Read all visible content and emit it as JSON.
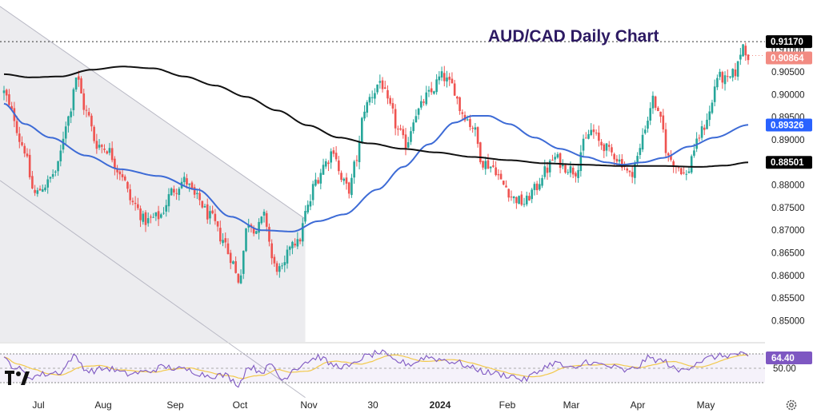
{
  "chart_data": {
    "type": "candlestick",
    "title": "AUD/CAD Daily Chart",
    "price_axis": {
      "range": [
        0.8453,
        0.9195
      ],
      "ticks": [
        "0.85000",
        "0.85500",
        "0.86000",
        "0.86500",
        "0.87000",
        "0.87500",
        "0.88000",
        "0.88500",
        "0.89000",
        "0.89500",
        "0.90000",
        "0.90500",
        "0.91000"
      ]
    },
    "time_axis": {
      "labels": [
        "Jul",
        "Aug",
        "Sep",
        "Oct",
        "Nov",
        "30",
        "2024",
        "Feb",
        "Mar",
        "Apr",
        "May"
      ],
      "bold_labels": [
        "2024"
      ]
    },
    "price_tags": [
      {
        "id": "high",
        "label": "0.91170",
        "value": 0.9117,
        "color": "#000000",
        "text_color": "#ffffff"
      },
      {
        "id": "last",
        "label": "0.90864",
        "value": 0.90864,
        "color": "#f28b82",
        "text_color": "#ffffff"
      },
      {
        "id": "ma50",
        "label": "0.89326",
        "value": 0.89326,
        "color": "#2962ff",
        "text_color": "#ffffff"
      },
      {
        "id": "ma200",
        "label": "0.88501",
        "value": 0.88501,
        "color": "#000000",
        "text_color": "#ffffff"
      }
    ],
    "high_line": 0.9117,
    "series": [
      {
        "kind": "price",
        "colors": {
          "up": "#26a69a",
          "down": "#ef5350"
        },
        "waypoints": [
          [
            0,
            0.9005
          ],
          [
            3,
            0.896
          ],
          [
            7,
            0.889
          ],
          [
            12,
            0.878
          ],
          [
            16,
            0.88
          ],
          [
            20,
            0.883
          ],
          [
            25,
            0.895
          ],
          [
            28,
            0.904
          ],
          [
            32,
            0.896
          ],
          [
            36,
            0.889
          ],
          [
            40,
            0.888
          ],
          [
            45,
            0.883
          ],
          [
            50,
            0.876
          ],
          [
            55,
            0.872
          ],
          [
            60,
            0.873
          ],
          [
            66,
            0.879
          ],
          [
            70,
            0.881
          ],
          [
            75,
            0.877
          ],
          [
            80,
            0.873
          ],
          [
            85,
            0.868
          ],
          [
            88,
            0.864
          ],
          [
            91,
            0.859
          ],
          [
            95,
            0.872
          ],
          [
            98,
            0.87
          ],
          [
            101,
            0.873
          ],
          [
            105,
            0.862
          ],
          [
            108,
            0.861
          ],
          [
            112,
            0.868
          ],
          [
            114,
            0.867
          ],
          [
            118,
            0.875
          ],
          [
            121,
            0.881
          ],
          [
            125,
            0.885
          ],
          [
            128,
            0.888
          ],
          [
            131,
            0.881
          ],
          [
            134,
            0.879
          ],
          [
            137,
            0.886
          ],
          [
            140,
            0.897
          ],
          [
            143,
            0.9
          ],
          [
            146,
            0.903
          ],
          [
            150,
            0.897
          ],
          [
            153,
            0.892
          ],
          [
            156,
            0.889
          ],
          [
            160,
            0.896
          ],
          [
            165,
            0.9
          ],
          [
            170,
            0.904
          ],
          [
            174,
            0.902
          ],
          [
            178,
            0.896
          ],
          [
            182,
            0.893
          ],
          [
            186,
            0.885
          ],
          [
            190,
            0.884
          ],
          [
            194,
            0.88
          ],
          [
            198,
            0.877
          ],
          [
            202,
            0.876
          ],
          [
            206,
            0.879
          ],
          [
            210,
            0.883
          ],
          [
            214,
            0.886
          ],
          [
            218,
            0.884
          ],
          [
            222,
            0.883
          ],
          [
            225,
            0.889
          ],
          [
            228,
            0.892
          ],
          [
            232,
            0.889
          ],
          [
            236,
            0.887
          ],
          [
            240,
            0.885
          ],
          [
            243,
            0.882
          ],
          [
            246,
            0.886
          ],
          [
            249,
            0.893
          ],
          [
            252,
            0.899
          ],
          [
            255,
            0.894
          ],
          [
            258,
            0.886
          ],
          [
            262,
            0.884
          ],
          [
            265,
            0.882
          ],
          [
            268,
            0.888
          ],
          [
            271,
            0.892
          ],
          [
            274,
            0.896
          ],
          [
            277,
            0.904
          ],
          [
            281,
            0.903
          ],
          [
            284,
            0.905
          ],
          [
            287,
            0.911
          ],
          [
            289,
            0.9086
          ]
        ]
      },
      {
        "kind": "ma50",
        "name": "",
        "color": "#3d6bd6",
        "waypoints": [
          [
            0,
            0.898
          ],
          [
            8,
            0.8935
          ],
          [
            18,
            0.8905
          ],
          [
            32,
            0.8865
          ],
          [
            45,
            0.8835
          ],
          [
            60,
            0.882
          ],
          [
            75,
            0.879
          ],
          [
            88,
            0.873
          ],
          [
            100,
            0.87
          ],
          [
            112,
            0.8697
          ],
          [
            122,
            0.872
          ],
          [
            132,
            0.8735
          ],
          [
            145,
            0.879
          ],
          [
            155,
            0.884
          ],
          [
            165,
            0.889
          ],
          [
            175,
            0.8938
          ],
          [
            182,
            0.8953
          ],
          [
            188,
            0.8953
          ],
          [
            196,
            0.8935
          ],
          [
            206,
            0.8905
          ],
          [
            216,
            0.888
          ],
          [
            226,
            0.8862
          ],
          [
            234,
            0.885
          ],
          [
            240,
            0.8845
          ],
          [
            248,
            0.885
          ],
          [
            256,
            0.886
          ],
          [
            266,
            0.8885
          ],
          [
            276,
            0.8905
          ],
          [
            289,
            0.8933
          ]
        ]
      },
      {
        "kind": "ma200",
        "name": "",
        "color": "#111111",
        "waypoints": [
          [
            0,
            0.9045
          ],
          [
            10,
            0.9038
          ],
          [
            22,
            0.904
          ],
          [
            34,
            0.9055
          ],
          [
            46,
            0.9062
          ],
          [
            58,
            0.9058
          ],
          [
            70,
            0.904
          ],
          [
            82,
            0.902
          ],
          [
            94,
            0.8995
          ],
          [
            106,
            0.8965
          ],
          [
            118,
            0.8932
          ],
          [
            130,
            0.8905
          ],
          [
            142,
            0.8892
          ],
          [
            155,
            0.888
          ],
          [
            168,
            0.8872
          ],
          [
            182,
            0.8862
          ],
          [
            196,
            0.8855
          ],
          [
            210,
            0.8848
          ],
          [
            224,
            0.8845
          ],
          [
            240,
            0.8842
          ],
          [
            256,
            0.8842
          ],
          [
            270,
            0.884
          ],
          [
            280,
            0.8843
          ],
          [
            289,
            0.885
          ]
        ]
      }
    ],
    "channel": {
      "fill": "rgba(200,200,210,0.35)",
      "upper": [
        [
          0,
          0.9195
        ],
        [
          117,
          0.8725
        ]
      ],
      "lower": [
        [
          0,
          0.881
        ],
        [
          117,
          0.833
        ]
      ],
      "end_bar": 117
    },
    "rsi": {
      "value_label": "64.40",
      "mid_label": "50.00",
      "levels": [
        70,
        50,
        30
      ],
      "line_color": "#7e57c2",
      "signal_color": "#f2c94c",
      "waypoints": [
        [
          0,
          62
        ],
        [
          5,
          50
        ],
        [
          10,
          38
        ],
        [
          16,
          42
        ],
        [
          22,
          45
        ],
        [
          27,
          66
        ],
        [
          33,
          46
        ],
        [
          40,
          50
        ],
        [
          48,
          42
        ],
        [
          55,
          45
        ],
        [
          62,
          52
        ],
        [
          70,
          48
        ],
        [
          80,
          40
        ],
        [
          86,
          40
        ],
        [
          91,
          28
        ],
        [
          95,
          52
        ],
        [
          100,
          46
        ],
        [
          104,
          54
        ],
        [
          108,
          34
        ],
        [
          113,
          50
        ],
        [
          118,
          60
        ],
        [
          122,
          66
        ],
        [
          128,
          54
        ],
        [
          134,
          52
        ],
        [
          140,
          66
        ],
        [
          146,
          72
        ],
        [
          152,
          60
        ],
        [
          158,
          56
        ],
        [
          164,
          66
        ],
        [
          170,
          62
        ],
        [
          176,
          58
        ],
        [
          182,
          50
        ],
        [
          188,
          44
        ],
        [
          196,
          40
        ],
        [
          202,
          34
        ],
        [
          206,
          42
        ],
        [
          210,
          52
        ],
        [
          214,
          58
        ],
        [
          218,
          52
        ],
        [
          222,
          48
        ],
        [
          226,
          60
        ],
        [
          230,
          56
        ],
        [
          236,
          52
        ],
        [
          242,
          46
        ],
        [
          246,
          52
        ],
        [
          250,
          64
        ],
        [
          256,
          60
        ],
        [
          262,
          46
        ],
        [
          266,
          52
        ],
        [
          270,
          60
        ],
        [
          276,
          66
        ],
        [
          281,
          68
        ],
        [
          286,
          70
        ],
        [
          289,
          64
        ]
      ]
    },
    "logo": "tradingview-logo",
    "settings_icon": "gear-icon"
  }
}
